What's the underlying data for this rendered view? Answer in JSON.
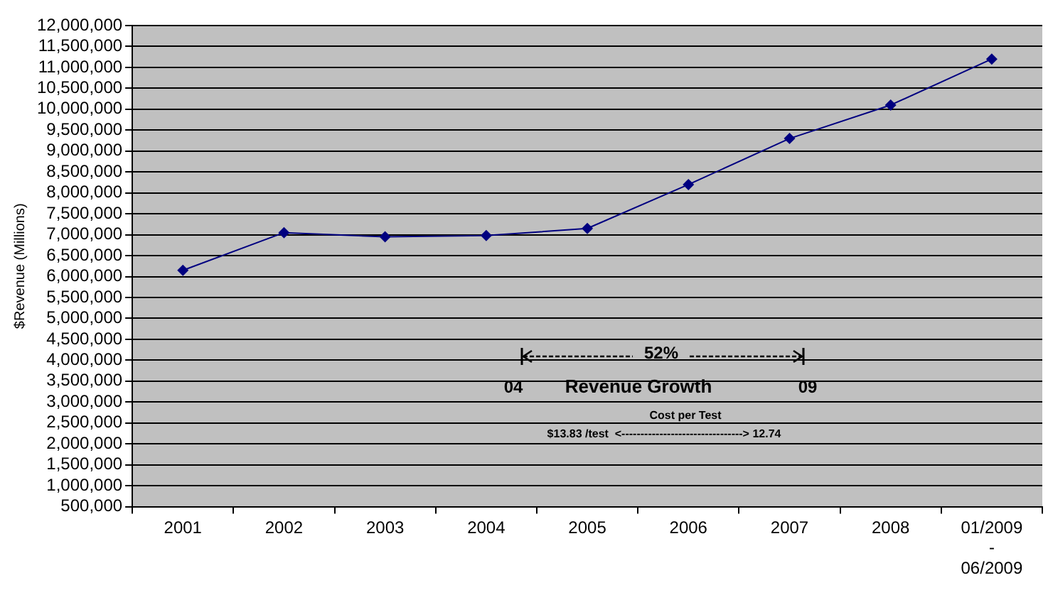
{
  "chart_data": {
    "type": "line",
    "ylabel": "$Revenue (Millions)",
    "categories": [
      "2001",
      "2002",
      "2003",
      "2004",
      "2005",
      "2006",
      "2007",
      "2008",
      "01/2009\n-\n06/2009"
    ],
    "series": [
      {
        "color": "#000080",
        "values": [
          6150000,
          7050000,
          6950000,
          6980000,
          7150000,
          8200000,
          9300000,
          10100000,
          11200000
        ]
      }
    ],
    "ylim": [
      500000,
      12000000
    ],
    "yticks": [
      {
        "value": 500000,
        "label": "500,000"
      },
      {
        "value": 1000000,
        "label": "1,000,000"
      },
      {
        "value": 1500000,
        "label": "1,500,000"
      },
      {
        "value": 2000000,
        "label": "2,000,000"
      },
      {
        "value": 2500000,
        "label": "2,500,000"
      },
      {
        "value": 3000000,
        "label": "3,000,000"
      },
      {
        "value": 3500000,
        "label": "3,500,000"
      },
      {
        "value": 4000000,
        "label": "4,000,000"
      },
      {
        "value": 4500000,
        "label": "4,500,000"
      },
      {
        "value": 5000000,
        "label": "5,000,000"
      },
      {
        "value": 5500000,
        "label": "5,500,000"
      },
      {
        "value": 6000000,
        "label": "6,000,000"
      },
      {
        "value": 6500000,
        "label": "6,500,000"
      },
      {
        "value": 7000000,
        "label": "7,000,000"
      },
      {
        "value": 7500000,
        "label": "7,500,000"
      },
      {
        "value": 8000000,
        "label": "8,000,000"
      },
      {
        "value": 8500000,
        "label": "8,500,000"
      },
      {
        "value": 9000000,
        "label": "9,000,000"
      },
      {
        "value": 9500000,
        "label": "9,500,000"
      },
      {
        "value": 10000000,
        "label": "10,000,000"
      },
      {
        "value": 10500000,
        "label": "10,500,000"
      },
      {
        "value": 11000000,
        "label": "11,000,000"
      },
      {
        "value": 11500000,
        "label": "11,500,000"
      },
      {
        "value": 12000000,
        "label": "12,000,000"
      }
    ],
    "grid": "y",
    "legend": false,
    "marker": "diamond",
    "line_style": "solid",
    "annotations": [
      "52%",
      "04",
      "Revenue Growth",
      "09",
      "Cost per Test",
      "$13.83 /test  <--------------------------------> 12.74"
    ]
  }
}
